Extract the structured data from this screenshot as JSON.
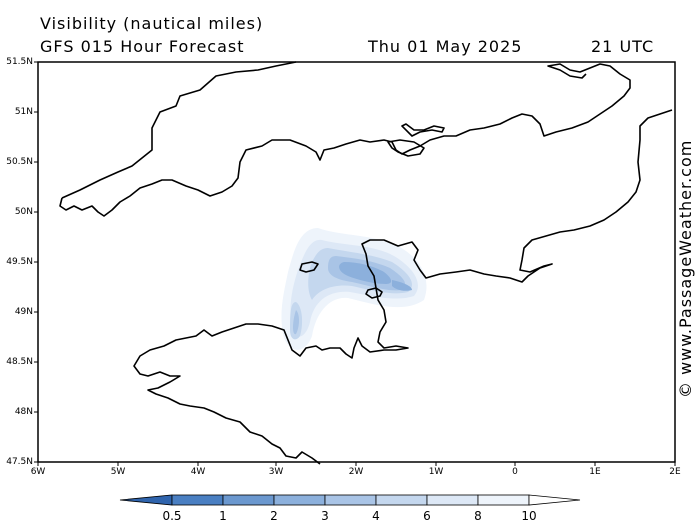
{
  "header": {
    "title": "Visibility (nautical miles)",
    "model": "GFS 015 Hour Forecast",
    "date": "Thu 01 May 2025",
    "time": "21 UTC"
  },
  "lat_labels": [
    "51.5N",
    "51N",
    "50.5N",
    "50N",
    "49.5N",
    "49N",
    "48.5N",
    "48N",
    "47.5N"
  ],
  "lon_labels": [
    "6W",
    "5W",
    "4W",
    "3W",
    "2W",
    "1W",
    "0",
    "1E",
    "2E"
  ],
  "colorbar": {
    "labels": [
      "0.5",
      "1",
      "2",
      "3",
      "4",
      "6",
      "8",
      "10"
    ],
    "colors": [
      "#4a7fc2",
      "#6b98cf",
      "#8cb0dc",
      "#a9c4e6",
      "#c4d7ee",
      "#dde8f6",
      "#eef4fb",
      "#ffffff"
    ]
  },
  "copyright": "© www.PassageWeather.com"
}
